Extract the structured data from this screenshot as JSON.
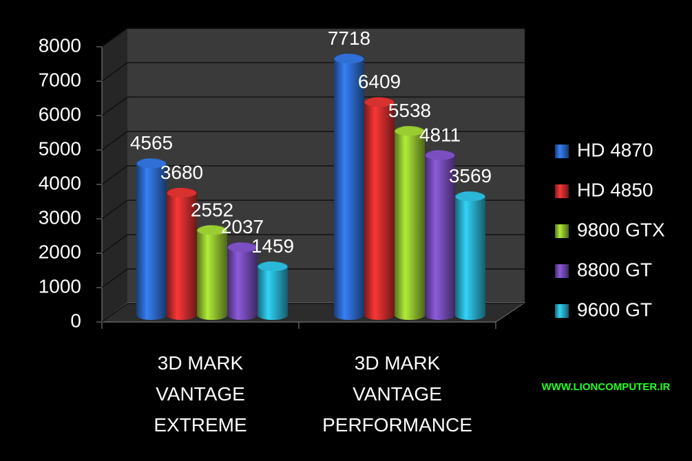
{
  "chart_data": {
    "type": "bar",
    "categories": [
      "3D MARK\nVANTAGE\nEXTREME",
      "3D MARK\nVANTAGE\nPERFORMANCE"
    ],
    "series": [
      {
        "name": "HD 4870",
        "color": "#2f6fd6",
        "values": [
          4565,
          7718
        ]
      },
      {
        "name": "HD 4850",
        "color": "#d93030",
        "values": [
          3680,
          6409
        ]
      },
      {
        "name": "9800 GTX",
        "color": "#9acd32",
        "values": [
          2552,
          5538
        ]
      },
      {
        "name": "8800 GT",
        "color": "#7b4fc0",
        "values": [
          2037,
          4811
        ]
      },
      {
        "name": "9600 GT",
        "color": "#2bb8d8",
        "values": [
          1459,
          3569
        ]
      }
    ],
    "ylim": [
      0,
      8000
    ],
    "yticks": [
      0,
      1000,
      2000,
      3000,
      4000,
      5000,
      6000,
      7000,
      8000
    ],
    "grid": true,
    "legend": "right",
    "watermark": "WWW.LIONCOMPUTER.IR"
  }
}
